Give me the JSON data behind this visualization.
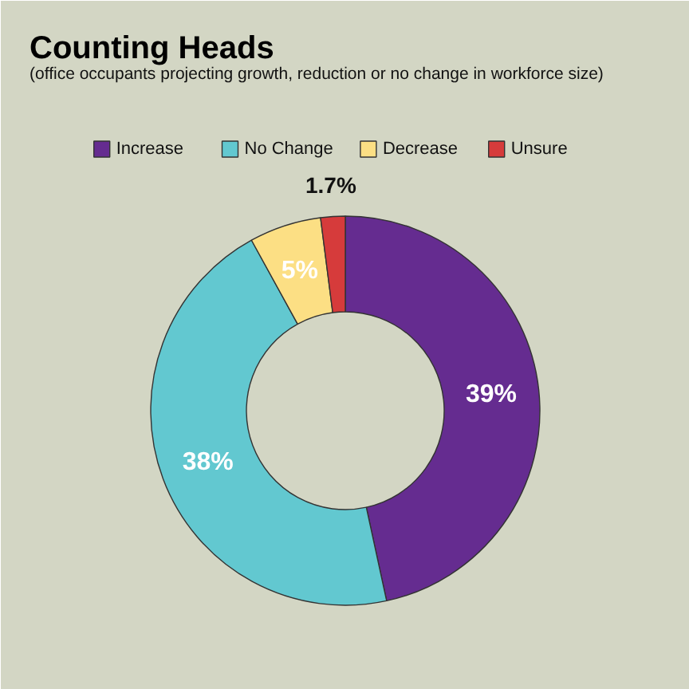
{
  "chart_data": {
    "type": "donut",
    "title": "Counting Heads",
    "subtitle": "(office occupants projecting growth, reduction or no change in workforce size)",
    "categories": [
      "Increase",
      "No Change",
      "Decrease",
      "Unsure"
    ],
    "values": [
      39,
      38,
      5,
      1.7
    ],
    "colors": [
      "#652c90",
      "#62c8d0",
      "#fcdf84",
      "#d63b3b"
    ],
    "value_labels": [
      "39%",
      "38%",
      "5%",
      "1.7%"
    ],
    "legend": "top"
  }
}
